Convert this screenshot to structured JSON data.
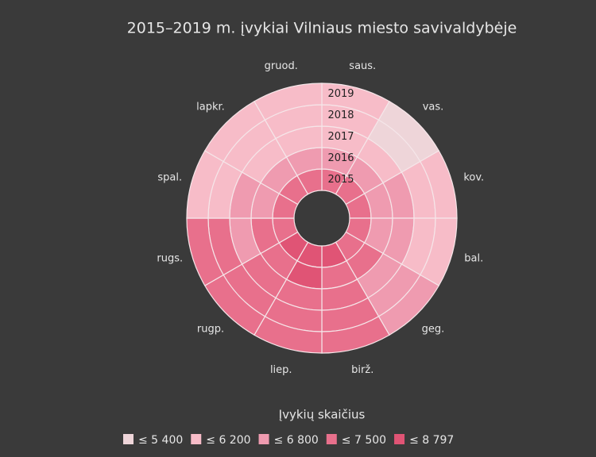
{
  "chart_data": {
    "type": "radial_heatmap",
    "title": "2015–2019 m. įvykiai Vilniaus miesto savivaldybėje",
    "categories": [
      "saus.",
      "vas.",
      "kov.",
      "bal.",
      "geg.",
      "birž.",
      "liep.",
      "rugp.",
      "rugs.",
      "spal.",
      "lapkr.",
      "gruod."
    ],
    "series": [
      {
        "name": "2015",
        "values": [
          7200,
          7200,
          7200,
          7200,
          7200,
          8100,
          8797,
          8100,
          7200,
          7200,
          7200,
          7200
        ]
      },
      {
        "name": "2016",
        "values": [
          6500,
          6500,
          6500,
          6500,
          7200,
          7200,
          8100,
          7200,
          7200,
          6500,
          6500,
          6500
        ]
      },
      {
        "name": "2017",
        "values": [
          5900,
          5900,
          6500,
          6500,
          6500,
          7200,
          7200,
          7200,
          6500,
          6500,
          5900,
          5900
        ]
      },
      {
        "name": "2018",
        "values": [
          5900,
          5200,
          5900,
          5900,
          6500,
          7200,
          7200,
          7200,
          7200,
          5900,
          5900,
          5900
        ]
      },
      {
        "name": "2019",
        "values": [
          5900,
          5200,
          5900,
          5900,
          6500,
          7200,
          7200,
          7200,
          7200,
          5900,
          5900,
          5900
        ]
      }
    ],
    "legend": {
      "title": "Įvykių skaičius",
      "bins": [
        {
          "value": 5400,
          "label": "≤ 5 400"
        },
        {
          "value": 6200,
          "label": "≤ 6 200"
        },
        {
          "value": 6800,
          "label": "≤ 6 800"
        },
        {
          "value": 7500,
          "label": "≤ 7 500"
        },
        {
          "value": 8797,
          "label": "≤ 8 797"
        }
      ],
      "colors": [
        "#eed5d9",
        "#f7bcc8",
        "#ef9bb0",
        "#e8708c",
        "#e05475"
      ]
    }
  }
}
